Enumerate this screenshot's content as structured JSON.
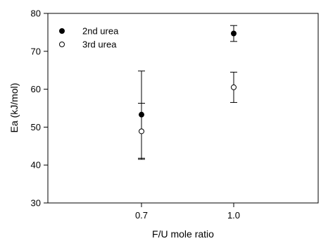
{
  "chart_data": {
    "type": "scatter",
    "xlabel": "F/U mole ratio",
    "ylabel": "Ea (kJ/mol)",
    "x_ticks": [
      "0.7",
      "1.0"
    ],
    "y_ticks": [
      "30",
      "40",
      "50",
      "60",
      "70",
      "80"
    ],
    "ylim": [
      30,
      80
    ],
    "grid": false,
    "legend_position": "top-left",
    "series": [
      {
        "name": "2nd urea",
        "marker": "filled-circle",
        "color": "#000000",
        "points": [
          {
            "x": "0.7",
            "y": 53.3,
            "err_low": 41.8,
            "err_high": 64.8
          },
          {
            "x": "1.0",
            "y": 74.7,
            "err_low": 72.6,
            "err_high": 76.8
          }
        ]
      },
      {
        "name": "3rd urea",
        "marker": "open-circle",
        "color": "#000000",
        "points": [
          {
            "x": "0.7",
            "y": 48.9,
            "err_low": 41.5,
            "err_high": 56.3
          },
          {
            "x": "1.0",
            "y": 60.5,
            "err_low": 56.5,
            "err_high": 64.5
          }
        ]
      }
    ]
  }
}
